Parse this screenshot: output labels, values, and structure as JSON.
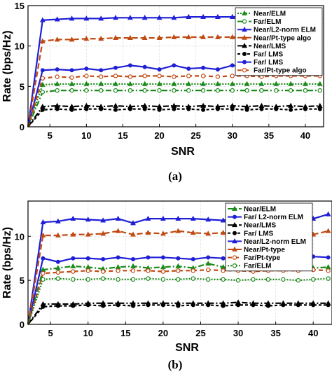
{
  "chart_data": [
    {
      "type": "line",
      "caption": "(a)",
      "xlabel": "SNR",
      "ylabel": "Rate (bps/Hz)",
      "xlim": [
        2,
        42.5
      ],
      "ylim": [
        0,
        15
      ],
      "xticks": [
        5,
        10,
        15,
        20,
        25,
        30,
        35,
        40
      ],
      "yticks": [
        0,
        5,
        10,
        15
      ],
      "grid": true,
      "legend_position": "top-right",
      "x": [
        2,
        4,
        6,
        8,
        10,
        12,
        14,
        16,
        18,
        20,
        22,
        24,
        26,
        28,
        30,
        32,
        34,
        36,
        38,
        40,
        42
      ],
      "series": [
        {
          "name": "Near/ELM",
          "color": "#1a8a1a",
          "dash": "2,2",
          "marker": "triangle-up",
          "values": [
            0,
            5.2,
            5.3,
            5.3,
            5.3,
            5.3,
            5.3,
            5.3,
            5.3,
            5.3,
            5.3,
            5.3,
            5.3,
            5.3,
            5.3,
            5.3,
            5.3,
            5.3,
            5.3,
            5.3,
            5.3
          ]
        },
        {
          "name": "Far/ELM",
          "color": "#1a8a1a",
          "dash": "8,3,2,3",
          "marker": "circle-open",
          "values": [
            0,
            4.3,
            4.5,
            4.5,
            4.5,
            4.5,
            4.5,
            4.5,
            4.5,
            4.5,
            4.5,
            4.5,
            4.5,
            4.5,
            4.5,
            4.5,
            4.5,
            4.5,
            4.5,
            4.5,
            4.5
          ]
        },
        {
          "name": "Near/L2-norm ELM",
          "color": "#1f1fd6",
          "dash": "",
          "marker": "triangle-up",
          "values": [
            0,
            13.2,
            13.3,
            13.4,
            13.4,
            13.4,
            13.5,
            13.5,
            13.5,
            13.5,
            13.5,
            13.6,
            13.6,
            13.6,
            13.6,
            13.6,
            13.6,
            13.6,
            13.6,
            13.6,
            13.6
          ]
        },
        {
          "name": "Near/Pt-type algo",
          "color": "#c04a12",
          "dash": "8,4",
          "marker": "triangle-up",
          "values": [
            0,
            10.6,
            10.8,
            10.8,
            10.9,
            10.9,
            11.0,
            11.0,
            11.0,
            11.0,
            11.1,
            11.1,
            11.1,
            11.1,
            11.1,
            11.1,
            11.1,
            11.2,
            11.2,
            11.2,
            11.2
          ]
        },
        {
          "name": "Near/LMS",
          "color": "#000000",
          "dash": "8,3,2,3",
          "marker": "triangle-up",
          "values": [
            0,
            2.5,
            2.6,
            2.5,
            2.6,
            2.5,
            2.6,
            2.5,
            2.6,
            2.5,
            2.6,
            2.5,
            2.6,
            2.5,
            2.6,
            2.5,
            2.6,
            2.5,
            2.6,
            2.5,
            2.6
          ]
        },
        {
          "name": "Far/ LMS",
          "color": "#000000",
          "dash": "4,3",
          "marker": "circle-filled",
          "values": [
            0,
            2.1,
            2.2,
            2.1,
            2.2,
            2.2,
            2.1,
            2.2,
            2.2,
            2.1,
            2.2,
            2.2,
            2.1,
            2.2,
            2.2,
            2.1,
            2.2,
            2.2,
            2.1,
            2.2,
            2.2
          ]
        },
        {
          "name": "Far/ LMS",
          "color": "#1f1fd6",
          "dash": "",
          "marker": "circle-filled",
          "values": [
            0,
            7.0,
            7.1,
            7.0,
            7.2,
            7.0,
            7.3,
            7.6,
            7.4,
            7.1,
            7.6,
            7.2,
            7.3,
            7.1,
            7.6,
            7.3,
            7.2,
            7.4,
            7.5,
            7.4,
            7.1
          ]
        },
        {
          "name": "Far/Pt-type algo",
          "color": "#c04a12",
          "dash": "6,4",
          "marker": "circle-open",
          "values": [
            0,
            6.0,
            6.2,
            6.1,
            6.3,
            6.2,
            6.3,
            6.2,
            6.3,
            6.3,
            6.2,
            6.3,
            6.3,
            6.2,
            6.3,
            6.3,
            6.2,
            6.3,
            6.3,
            6.3,
            6.3
          ]
        }
      ]
    },
    {
      "type": "line",
      "caption": "(b)",
      "xlabel": "SNR",
      "ylabel": "Rate (bps/Hz)",
      "xlim": [
        2,
        42.5
      ],
      "ylim": [
        0,
        14
      ],
      "xticks": [
        5,
        10,
        15,
        20,
        25,
        30,
        35,
        40
      ],
      "yticks": [
        0,
        5,
        10
      ],
      "grid": true,
      "legend_position": "top-right",
      "x": [
        2,
        4,
        6,
        8,
        10,
        12,
        14,
        16,
        18,
        20,
        22,
        24,
        26,
        28,
        30,
        32,
        34,
        36,
        38,
        40,
        42
      ],
      "series": [
        {
          "name": "Near/ELM",
          "color": "#1a8a1a",
          "dash": "8,3,2,3",
          "marker": "triangle-up",
          "values": [
            0,
            6.2,
            6.4,
            6.6,
            6.5,
            6.3,
            6.5,
            6.6,
            6.4,
            6.5,
            6.6,
            6.4,
            6.9,
            6.5,
            6.4,
            6.6,
            6.5,
            6.7,
            6.5,
            6.4,
            6.5
          ]
        },
        {
          "name": "Far/ L2-norm ELM",
          "color": "#1f1fd6",
          "dash": "",
          "marker": "circle-filled",
          "values": [
            0,
            7.5,
            7.1,
            7.5,
            7.5,
            7.4,
            7.6,
            7.4,
            7.6,
            7.6,
            7.5,
            7.4,
            7.6,
            7.5,
            7.6,
            7.8,
            7.6,
            7.5,
            7.8,
            7.7,
            7.6
          ]
        },
        {
          "name": "Near/LMS",
          "color": "#000000",
          "dash": "8,3,2,3",
          "marker": "triangle-up",
          "values": [
            0,
            2.3,
            2.3,
            2.3,
            2.4,
            2.4,
            2.4,
            2.4,
            2.4,
            2.4,
            2.4,
            2.4,
            2.4,
            2.4,
            2.5,
            2.4,
            2.4,
            2.4,
            2.4,
            2.4,
            2.4
          ]
        },
        {
          "name": "Far/ LMS",
          "color": "#000000",
          "dash": "4,3",
          "marker": "circle-filled",
          "values": [
            0,
            2.0,
            2.1,
            2.1,
            2.2,
            2.1,
            2.2,
            2.1,
            2.2,
            2.2,
            2.1,
            2.2,
            2.2,
            2.1,
            2.2,
            2.2,
            2.1,
            2.2,
            2.2,
            2.2,
            2.2
          ]
        },
        {
          "name": "Near/L2-norm ELM",
          "color": "#1f1fd6",
          "dash": "",
          "marker": "triangle-up",
          "values": [
            0,
            11.6,
            11.7,
            12.0,
            11.9,
            11.8,
            12.0,
            11.5,
            12.0,
            12.0,
            12.0,
            12.0,
            11.9,
            11.8,
            12.3,
            11.9,
            12.1,
            12.0,
            12.1,
            12.0,
            12.5
          ]
        },
        {
          "name": "Near/Pt-type",
          "color": "#c04a12",
          "dash": "8,4",
          "marker": "triangle-up",
          "values": [
            0,
            10.1,
            10.1,
            10.2,
            10.2,
            10.3,
            10.6,
            10.2,
            10.4,
            10.3,
            10.6,
            10.4,
            10.3,
            10.4,
            10.3,
            10.4,
            10.3,
            10.4,
            10.4,
            10.2,
            10.6
          ]
        },
        {
          "name": "Far/Pt-type",
          "color": "#c04a12",
          "dash": "6,4",
          "marker": "circle-open",
          "values": [
            0,
            5.8,
            5.9,
            6.0,
            6.1,
            6.0,
            6.1,
            6.1,
            6.1,
            6.0,
            6.1,
            6.1,
            6.2,
            6.1,
            6.1,
            6.0,
            6.1,
            6.1,
            6.1,
            6.2,
            6.1
          ]
        },
        {
          "name": "Far/ELM",
          "color": "#1a8a1a",
          "dash": "2,2",
          "marker": "circle-open",
          "values": [
            0,
            5.1,
            5.2,
            5.1,
            5.1,
            5.2,
            5.1,
            5.1,
            5.2,
            5.1,
            5.1,
            5.2,
            5.1,
            5.1,
            5.0,
            5.1,
            5.1,
            5.1,
            5.0,
            5.1,
            5.2
          ]
        }
      ]
    }
  ]
}
